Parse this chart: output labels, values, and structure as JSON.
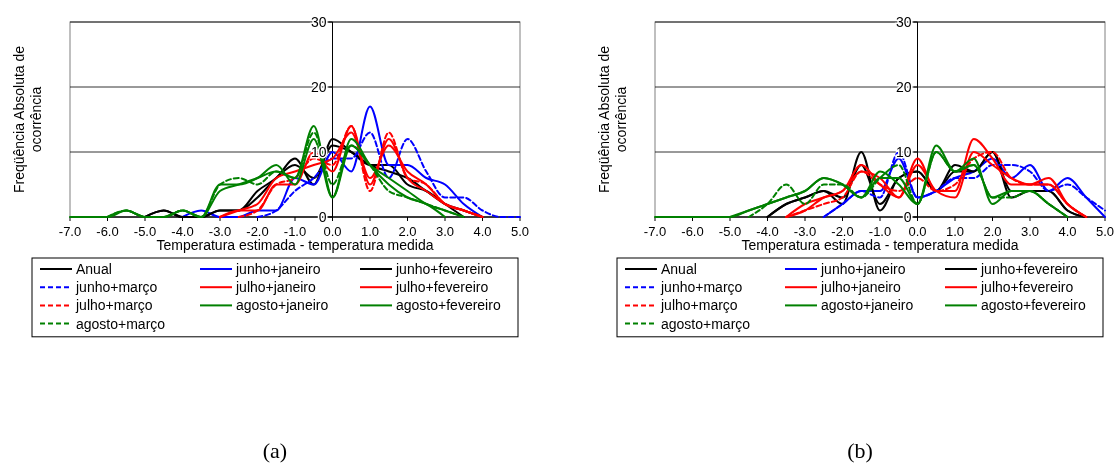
{
  "chart_data": [
    {
      "type": "line",
      "xlabel": "Temperatura estimada - temperatura medida",
      "ylabel": "Freqüência Absoluta de ocorrência",
      "annotations": [
        "(a)"
      ],
      "grid": "y",
      "legend": "bottom",
      "xlim": [
        -7,
        5
      ],
      "ylim": [
        0,
        30
      ],
      "xticks": [
        {
          "value": -7,
          "label": "-7.0"
        },
        {
          "value": -6,
          "label": "-6.0"
        },
        {
          "value": -5,
          "label": "-5.0"
        },
        {
          "value": -4,
          "label": "-4.0"
        },
        {
          "value": -3,
          "label": "-3.0"
        },
        {
          "value": -2,
          "label": "-2.0"
        },
        {
          "value": -1,
          "label": "-1.0"
        },
        {
          "value": 0,
          "label": "0.0"
        },
        {
          "value": 1,
          "label": "1.0"
        },
        {
          "value": 2,
          "label": "2.0"
        },
        {
          "value": 3,
          "label": "3.0"
        },
        {
          "value": 4,
          "label": "4.0"
        },
        {
          "value": 5,
          "label": "5.0"
        }
      ],
      "yticks": [
        0,
        10,
        20,
        30
      ],
      "x": [
        -7,
        -6.5,
        -6,
        -5.5,
        -5,
        -4.5,
        -4,
        -3.5,
        -3,
        -2.5,
        -2,
        -1.5,
        -1,
        -0.5,
        0,
        0.5,
        1,
        1.5,
        2,
        2.5,
        3,
        3.5,
        4,
        4.5,
        5
      ],
      "series": [
        {
          "name": "Anual",
          "color": "#000000",
          "line_style": "solid",
          "values": [
            null,
            null,
            null,
            null,
            0,
            1,
            0,
            0,
            1,
            1,
            4,
            6,
            9,
            5,
            12,
            10,
            8,
            8,
            5,
            4,
            2,
            0,
            null,
            null,
            null
          ]
        },
        {
          "name": "junho+janeiro",
          "color": "#0000ff",
          "line_style": "solid",
          "values": [
            null,
            null,
            null,
            null,
            null,
            null,
            0,
            1,
            0,
            0,
            1,
            1,
            6,
            5,
            10,
            7,
            17,
            8,
            8,
            6,
            5,
            2,
            0,
            null,
            null
          ]
        },
        {
          "name": "junho+fevereiro",
          "color": "#000000",
          "line_style": "solid",
          "values": [
            null,
            null,
            null,
            null,
            0,
            1,
            0,
            0,
            1,
            1,
            3,
            6,
            8,
            6,
            11,
            10,
            8,
            7,
            6,
            4,
            2,
            1,
            0,
            null,
            null
          ]
        },
        {
          "name": "junho+março",
          "color": "#0000ff",
          "line_style": "dashed",
          "values": [
            null,
            null,
            null,
            null,
            null,
            null,
            null,
            null,
            null,
            null,
            0,
            1,
            4,
            6,
            9,
            9,
            13,
            6,
            12,
            7,
            3,
            3,
            1,
            0,
            0
          ]
        },
        {
          "name": "julho+janeiro",
          "color": "#ff0000",
          "line_style": "solid",
          "values": [
            null,
            null,
            null,
            null,
            null,
            null,
            null,
            null,
            0,
            1,
            1,
            5,
            5,
            10,
            7,
            14,
            5,
            12,
            6,
            4,
            2,
            1,
            0,
            null,
            null
          ]
        },
        {
          "name": "julho+fevereiro",
          "color": "#ff0000",
          "line_style": "solid",
          "values": [
            null,
            null,
            null,
            null,
            null,
            null,
            null,
            null,
            0,
            1,
            2,
            6,
            7,
            8,
            9,
            13,
            6,
            11,
            7,
            5,
            2,
            1,
            0,
            null,
            null
          ]
        },
        {
          "name": "julho+março",
          "color": "#ff0000",
          "line_style": "dashed",
          "values": [
            null,
            null,
            null,
            null,
            null,
            null,
            null,
            null,
            null,
            0,
            1,
            5,
            6,
            9,
            8,
            14,
            4,
            13,
            6,
            5,
            2,
            1,
            0,
            null,
            null
          ]
        },
        {
          "name": "agosto+janeiro",
          "color": "#008000",
          "line_style": "solid",
          "values": [
            0,
            0,
            0,
            1,
            0,
            0,
            1,
            0,
            5,
            5,
            6,
            8,
            5,
            12,
            3,
            12,
            8,
            5,
            3,
            2,
            0,
            null,
            null,
            null,
            null
          ]
        },
        {
          "name": "agosto+fevereiro",
          "color": "#008000",
          "line_style": "solid",
          "values": [
            null,
            null,
            0,
            1,
            0,
            0,
            1,
            0,
            4,
            5,
            6,
            7,
            6,
            14,
            3,
            11,
            8,
            6,
            4,
            2,
            1,
            0,
            null,
            null,
            null
          ]
        },
        {
          "name": "agosto+março",
          "color": "#008000",
          "line_style": "dashed",
          "values": [
            null,
            null,
            0,
            1,
            0,
            0,
            1,
            0,
            5,
            6,
            5,
            7,
            6,
            13,
            5,
            11,
            8,
            4,
            3,
            2,
            1,
            0,
            null,
            null,
            null
          ]
        }
      ]
    },
    {
      "type": "line",
      "xlabel": "Temperatura estimada - temperatura medida",
      "ylabel": "Freqüência Absoluta de ocorrência",
      "annotations": [
        "(b)"
      ],
      "grid": "y",
      "legend": "bottom",
      "xlim": [
        -7,
        5
      ],
      "ylim": [
        0,
        30
      ],
      "xticks": [
        {
          "value": -7,
          "label": "-7.0"
        },
        {
          "value": -6,
          "label": "-6.0"
        },
        {
          "value": -5,
          "label": "-5.0"
        },
        {
          "value": -4,
          "label": "-4.0"
        },
        {
          "value": -3,
          "label": "-3.0"
        },
        {
          "value": -2,
          "label": "-2.0"
        },
        {
          "value": -1,
          "label": "-1.0"
        },
        {
          "value": 0,
          "label": "0.0"
        },
        {
          "value": 1,
          "label": "1.0"
        },
        {
          "value": 2,
          "label": "2.0"
        },
        {
          "value": 3,
          "label": "3.0"
        },
        {
          "value": 4,
          "label": "4.0"
        },
        {
          "value": 5,
          "label": "5.0"
        }
      ],
      "yticks": [
        0,
        10,
        20,
        30
      ],
      "x": [
        -7,
        -6.5,
        -6,
        -5.5,
        -5,
        -4.5,
        -4,
        -3.5,
        -3,
        -2.5,
        -2,
        -1.5,
        -1,
        -0.5,
        0,
        0.5,
        1,
        1.5,
        2,
        2.5,
        3,
        3.5,
        4,
        4.5,
        5
      ],
      "series": [
        {
          "name": "Anual",
          "color": "#000000",
          "line_style": "solid",
          "values": [
            null,
            null,
            null,
            null,
            null,
            null,
            0,
            2,
            3,
            4,
            2,
            10,
            1,
            6,
            7,
            4,
            8,
            7,
            10,
            3,
            4,
            4,
            1,
            0,
            null
          ]
        },
        {
          "name": "junho+janeiro",
          "color": "#0000ff",
          "line_style": "solid",
          "values": [
            null,
            null,
            null,
            null,
            null,
            null,
            null,
            null,
            null,
            0,
            2,
            4,
            4,
            9,
            3,
            4,
            6,
            7,
            9,
            6,
            8,
            4,
            6,
            3,
            0
          ]
        },
        {
          "name": "junho+fevereiro",
          "color": "#000000",
          "line_style": "solid",
          "values": [
            null,
            null,
            null,
            null,
            null,
            null,
            0,
            2,
            3,
            4,
            3,
            8,
            2,
            6,
            7,
            4,
            7,
            7,
            10,
            4,
            4,
            4,
            1,
            0,
            null
          ]
        },
        {
          "name": "junho+março",
          "color": "#0000ff",
          "line_style": "dashed",
          "values": [
            null,
            null,
            null,
            null,
            null,
            null,
            null,
            null,
            null,
            0,
            2,
            4,
            3,
            10,
            3,
            4,
            6,
            6,
            8,
            8,
            7,
            4,
            5,
            3,
            1
          ]
        },
        {
          "name": "julho+janeiro",
          "color": "#ff0000",
          "line_style": "solid",
          "values": [
            null,
            null,
            null,
            null,
            null,
            null,
            null,
            0,
            2,
            3,
            4,
            8,
            5,
            3,
            8,
            4,
            3,
            10,
            8,
            6,
            5,
            5,
            2,
            0,
            null
          ]
        },
        {
          "name": "julho+fevereiro",
          "color": "#ff0000",
          "line_style": "solid",
          "values": [
            null,
            null,
            null,
            null,
            null,
            null,
            null,
            0,
            1,
            3,
            4,
            7,
            6,
            3,
            9,
            4,
            4,
            12,
            9,
            5,
            5,
            6,
            2,
            0,
            null
          ]
        },
        {
          "name": "julho+março",
          "color": "#ff0000",
          "line_style": "dashed",
          "values": [
            null,
            null,
            null,
            null,
            null,
            null,
            null,
            0,
            1,
            2,
            3,
            7,
            5,
            4,
            6,
            4,
            5,
            9,
            10,
            6,
            5,
            5,
            2,
            0,
            null
          ]
        },
        {
          "name": "agosto+janeiro",
          "color": "#008000",
          "line_style": "solid",
          "values": [
            0,
            0,
            0,
            0,
            0,
            1,
            2,
            3,
            4,
            6,
            5,
            3,
            7,
            5,
            2,
            11,
            7,
            9,
            2,
            4,
            4,
            2,
            0,
            null,
            null
          ]
        },
        {
          "name": "agosto+fevereiro",
          "color": "#008000",
          "line_style": "solid",
          "values": [
            null,
            null,
            null,
            null,
            0,
            1,
            2,
            3,
            4,
            6,
            5,
            3,
            6,
            6,
            2,
            10,
            7,
            8,
            3,
            4,
            4,
            2,
            0,
            null,
            null
          ]
        },
        {
          "name": "agosto+março",
          "color": "#008000",
          "line_style": "dashed",
          "values": [
            null,
            null,
            null,
            null,
            null,
            0,
            2,
            5,
            2,
            5,
            5,
            3,
            6,
            8,
            2,
            10,
            7,
            8,
            3,
            3,
            4,
            2,
            0,
            null,
            null
          ]
        }
      ]
    }
  ]
}
